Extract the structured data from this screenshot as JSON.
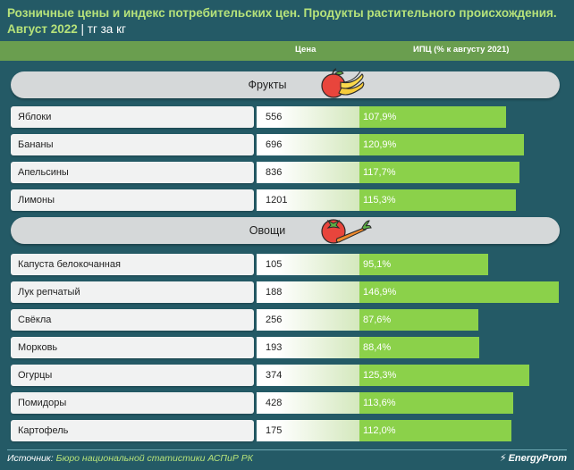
{
  "title_line1": "Розничные цены и индекс потребительских цен. Продукты растительного происхождения.",
  "title_line2_main": "Август 2022",
  "title_line2_unit": " | тг за кг",
  "columns": {
    "price": "Цена",
    "cpi": "ИПЦ (% к августу 2021)"
  },
  "chart_data": {
    "type": "table",
    "sections": [
      {
        "name": "Фрукты",
        "icon": "fruits-icon",
        "rows": [
          {
            "name": "Яблоки",
            "price": "556",
            "cpi": 107.9,
            "cpi_label": "107,9%"
          },
          {
            "name": "Бананы",
            "price": "696",
            "cpi": 120.9,
            "cpi_label": "120,9%"
          },
          {
            "name": "Апельсины",
            "price": "836",
            "cpi": 117.7,
            "cpi_label": "117,7%"
          },
          {
            "name": "Лимоны",
            "price": "1201",
            "cpi": 115.3,
            "cpi_label": "115,3%"
          }
        ]
      },
      {
        "name": "Овощи",
        "icon": "vegetables-icon",
        "rows": [
          {
            "name": "Капуста белокочанная",
            "price": "105",
            "cpi": 95.1,
            "cpi_label": "95,1%"
          },
          {
            "name": "Лук репчатый",
            "price": "188",
            "cpi": 146.9,
            "cpi_label": "146,9%"
          },
          {
            "name": "Свёкла",
            "price": "256",
            "cpi": 87.6,
            "cpi_label": "87,6%"
          },
          {
            "name": "Морковь",
            "price": "193",
            "cpi": 88.4,
            "cpi_label": "88,4%"
          },
          {
            "name": "Огурцы",
            "price": "374",
            "cpi": 125.3,
            "cpi_label": "125,3%"
          },
          {
            "name": "Помидоры",
            "price": "428",
            "cpi": 113.6,
            "cpi_label": "113,6%"
          },
          {
            "name": "Картофель",
            "price": "175",
            "cpi": 112.0,
            "cpi_label": "112,0%"
          }
        ]
      }
    ]
  },
  "source_label": "Источник: ",
  "source_value": "Бюро национальной статистики АСПиР РК",
  "logo_text": "EnergyProm",
  "colors": {
    "bar": "#8bd14a",
    "background": "#245a66",
    "accent": "#b6e27a"
  }
}
